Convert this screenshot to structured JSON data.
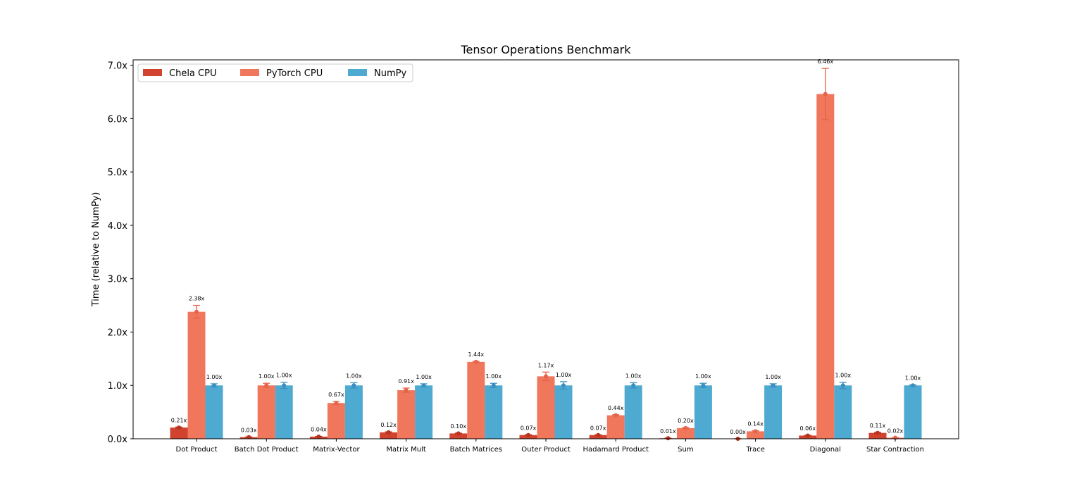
{
  "chart_data": {
    "type": "bar",
    "title": "Tensor Operations Benchmark",
    "xlabel": "",
    "ylabel": "Time (relative to NumPy)",
    "ylim": [
      0,
      7.1
    ],
    "yticks": [
      0.0,
      1.0,
      2.0,
      3.0,
      4.0,
      5.0,
      6.0,
      7.0
    ],
    "ytick_labels": [
      "0.0x",
      "1.0x",
      "2.0x",
      "3.0x",
      "4.0x",
      "5.0x",
      "6.0x",
      "7.0x"
    ],
    "grid": false,
    "legend_position": "top-left",
    "categories": [
      "Dot Product",
      "Batch Dot Product",
      "Matrix-Vector",
      "Matrix Mult",
      "Batch Matrices",
      "Outer Product",
      "Hadamard Product",
      "Sum",
      "Trace",
      "Diagonal",
      "Star Contraction"
    ],
    "series": [
      {
        "name": "Chela CPU",
        "color": "#d2432f",
        "values": [
          0.21,
          0.03,
          0.04,
          0.12,
          0.1,
          0.07,
          0.07,
          0.01,
          0.0,
          0.06,
          0.11
        ],
        "labels": [
          "0.21x",
          "0.03x",
          "0.04x",
          "0.12x",
          "0.10x",
          "0.07x",
          "0.07x",
          "0.01x",
          "0.00x",
          "0.06x",
          "0.11x"
        ],
        "errors": [
          0.01,
          0.005,
          0.005,
          0.01,
          0.005,
          0.005,
          0.005,
          0.002,
          0.001,
          0.005,
          0.01
        ]
      },
      {
        "name": "PyTorch CPU",
        "color": "#f0765c",
        "values": [
          2.38,
          1.0,
          0.67,
          0.91,
          1.44,
          1.17,
          0.44,
          0.2,
          0.14,
          6.46,
          0.02
        ],
        "labels": [
          "2.38x",
          "1.00x",
          "0.67x",
          "0.91x",
          "1.44x",
          "1.17x",
          "0.44x",
          "0.20x",
          "0.14x",
          "6.46x",
          "0.02x"
        ],
        "errors": [
          0.12,
          0.04,
          0.03,
          0.04,
          0.01,
          0.08,
          0.01,
          0.01,
          0.01,
          0.48,
          0.002
        ]
      },
      {
        "name": "NumPy",
        "color": "#4eaad0",
        "values": [
          1.0,
          1.0,
          1.0,
          1.0,
          1.0,
          1.0,
          1.0,
          1.0,
          1.0,
          1.0,
          1.0
        ],
        "labels": [
          "1.00x",
          "1.00x",
          "1.00x",
          "1.00x",
          "1.00x",
          "1.00x",
          "1.00x",
          "1.00x",
          "1.00x",
          "1.00x",
          "1.00x"
        ],
        "errors": [
          0.03,
          0.06,
          0.05,
          0.03,
          0.04,
          0.07,
          0.05,
          0.04,
          0.03,
          0.06,
          0.01
        ]
      }
    ]
  }
}
